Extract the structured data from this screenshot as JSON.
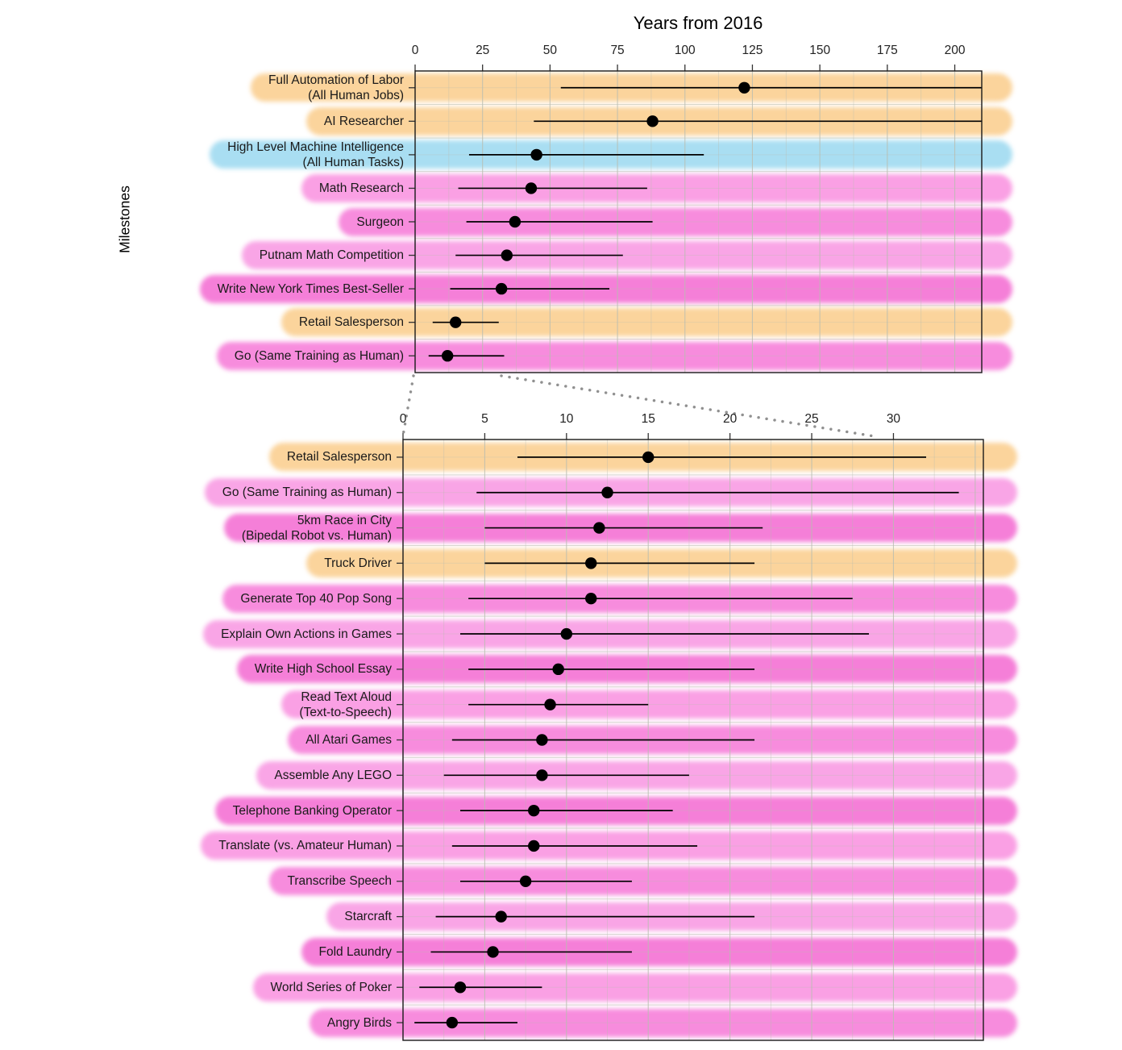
{
  "title": "Years from 2016",
  "ylabel": "Milestones",
  "colors": {
    "orange_band": "#fbd49c",
    "blue_band": "#a9def2",
    "pink_shades": [
      "#f78cdd",
      "#f9a5e6",
      "#f57fd8",
      "#faa0e4"
    ],
    "point": "#000000",
    "grid": "#b9bdb0",
    "border": "#1a1a1a",
    "connector": "#909090"
  },
  "chart_data": [
    {
      "type": "scatter",
      "subtype": "median-with-interval",
      "panel": "top",
      "xlabel": "Years from 2016",
      "xlim": [
        0,
        210
      ],
      "xticks": [
        0,
        25,
        50,
        75,
        100,
        125,
        150,
        175,
        200
      ],
      "grid": true,
      "rows": [
        {
          "label": "Full Automation of Labor\n(All Human Jobs)",
          "median": 122,
          "lo": 54,
          "hi": 210,
          "interval_right_censored": true,
          "band": "orange"
        },
        {
          "label": "AI Researcher",
          "median": 88,
          "lo": 44,
          "hi": 210,
          "interval_right_censored": true,
          "band": "orange"
        },
        {
          "label": "High Level Machine Intelligence\n(All Human Tasks)",
          "median": 45,
          "lo": 20,
          "hi": 107,
          "band": "blue"
        },
        {
          "label": "Math Research",
          "median": 43,
          "lo": 16,
          "hi": 86,
          "band": "pink"
        },
        {
          "label": "Surgeon",
          "median": 37,
          "lo": 19,
          "hi": 88,
          "band": "pink"
        },
        {
          "label": "Putnam Math Competition",
          "median": 34,
          "lo": 15,
          "hi": 77,
          "band": "pink"
        },
        {
          "label": "Write New York Times Best-Seller",
          "median": 32,
          "lo": 13,
          "hi": 72,
          "band": "pink"
        },
        {
          "label": "Retail Salesperson",
          "median": 15,
          "lo": 6.5,
          "hi": 31,
          "band": "orange"
        },
        {
          "label": "Go (Same Training as Human)",
          "median": 12,
          "lo": 5,
          "hi": 33,
          "band": "pink"
        }
      ]
    },
    {
      "type": "scatter",
      "subtype": "median-with-interval",
      "panel": "bottom",
      "xlabel": "",
      "xlim": [
        0,
        35.5
      ],
      "xticks": [
        0,
        5,
        10,
        15,
        20,
        25,
        30
      ],
      "grid": true,
      "rows": [
        {
          "label": "Retail Salesperson",
          "median": 15,
          "lo": 7,
          "hi": 32,
          "band": "orange"
        },
        {
          "label": "Go (Same Training as Human)",
          "median": 12.5,
          "lo": 4.5,
          "hi": 34,
          "band": "pink"
        },
        {
          "label": "5km Race in City\n(Bipedal Robot vs. Human)",
          "median": 12,
          "lo": 5,
          "hi": 22,
          "band": "pink"
        },
        {
          "label": "Truck Driver",
          "median": 11.5,
          "lo": 5,
          "hi": 21.5,
          "band": "orange"
        },
        {
          "label": "Generate Top 40 Pop Song",
          "median": 11.5,
          "lo": 4,
          "hi": 27.5,
          "band": "pink"
        },
        {
          "label": "Explain Own Actions in Games",
          "median": 10,
          "lo": 3.5,
          "hi": 28.5,
          "band": "pink"
        },
        {
          "label": "Write High School Essay",
          "median": 9.5,
          "lo": 4,
          "hi": 21.5,
          "band": "pink"
        },
        {
          "label": "Read Text Aloud\n(Text-to-Speech)",
          "median": 9,
          "lo": 4,
          "hi": 15,
          "band": "pink"
        },
        {
          "label": "All Atari Games",
          "median": 8.5,
          "lo": 3,
          "hi": 21.5,
          "band": "pink"
        },
        {
          "label": "Assemble Any LEGO",
          "median": 8.5,
          "lo": 2.5,
          "hi": 17.5,
          "band": "pink"
        },
        {
          "label": "Telephone Banking Operator",
          "median": 8,
          "lo": 3.5,
          "hi": 16.5,
          "band": "pink"
        },
        {
          "label": "Translate (vs. Amateur Human)",
          "median": 8,
          "lo": 3,
          "hi": 18,
          "band": "pink"
        },
        {
          "label": "Transcribe Speech",
          "median": 7.5,
          "lo": 3.5,
          "hi": 14,
          "band": "pink"
        },
        {
          "label": "Starcraft",
          "median": 6,
          "lo": 2,
          "hi": 21.5,
          "band": "pink"
        },
        {
          "label": "Fold Laundry",
          "median": 5.5,
          "lo": 1.7,
          "hi": 14,
          "band": "pink"
        },
        {
          "label": "World Series of Poker",
          "median": 3.5,
          "lo": 1,
          "hi": 8.5,
          "band": "pink"
        },
        {
          "label": "Angry Birds",
          "median": 3,
          "lo": 0.7,
          "hi": 7,
          "band": "pink"
        }
      ]
    }
  ]
}
